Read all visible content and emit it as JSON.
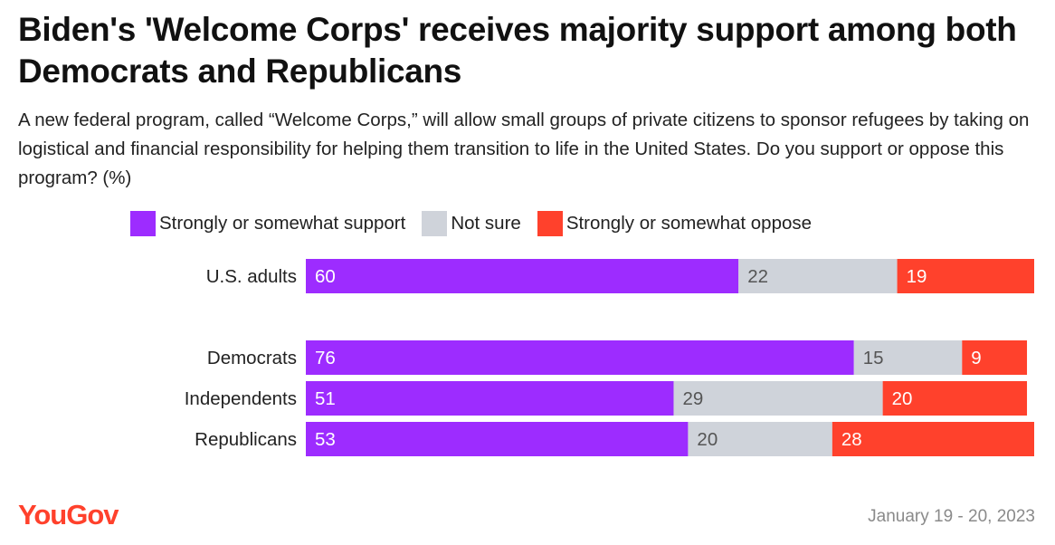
{
  "title": "Biden's 'Welcome Corps' receives majority support among both Democrats and Republicans",
  "subtitle": "A new federal program, called “Welcome Corps,” will allow small groups of private citizens to sponsor refugees by taking on logistical and financial responsibility for helping them transition to life in the United States. Do you support or oppose this program? (%)",
  "footer": {
    "logo": "YouGov",
    "date": "January 19 - 20, 2023"
  },
  "chart_data": {
    "type": "bar",
    "orientation": "horizontal",
    "stacked": true,
    "title": "Biden's 'Welcome Corps' receives majority support among both Democrats and Republicans",
    "xlabel": "",
    "ylabel": "",
    "xlim": [
      0,
      101
    ],
    "legend_position": "top",
    "categories": [
      "U.S. adults",
      "Democrats",
      "Independents",
      "Republicans"
    ],
    "series": [
      {
        "name": "Strongly or somewhat support",
        "color": "#9d2cff",
        "label_color": "#ffffff",
        "values": [
          60,
          76,
          51,
          53
        ]
      },
      {
        "name": "Not sure",
        "color": "#cfd3da",
        "label_color": "#555555",
        "values": [
          22,
          15,
          29,
          20
        ]
      },
      {
        "name": "Strongly or somewhat oppose",
        "color": "#ff412c",
        "label_color": "#ffffff",
        "values": [
          19,
          9,
          20,
          28
        ]
      }
    ]
  }
}
